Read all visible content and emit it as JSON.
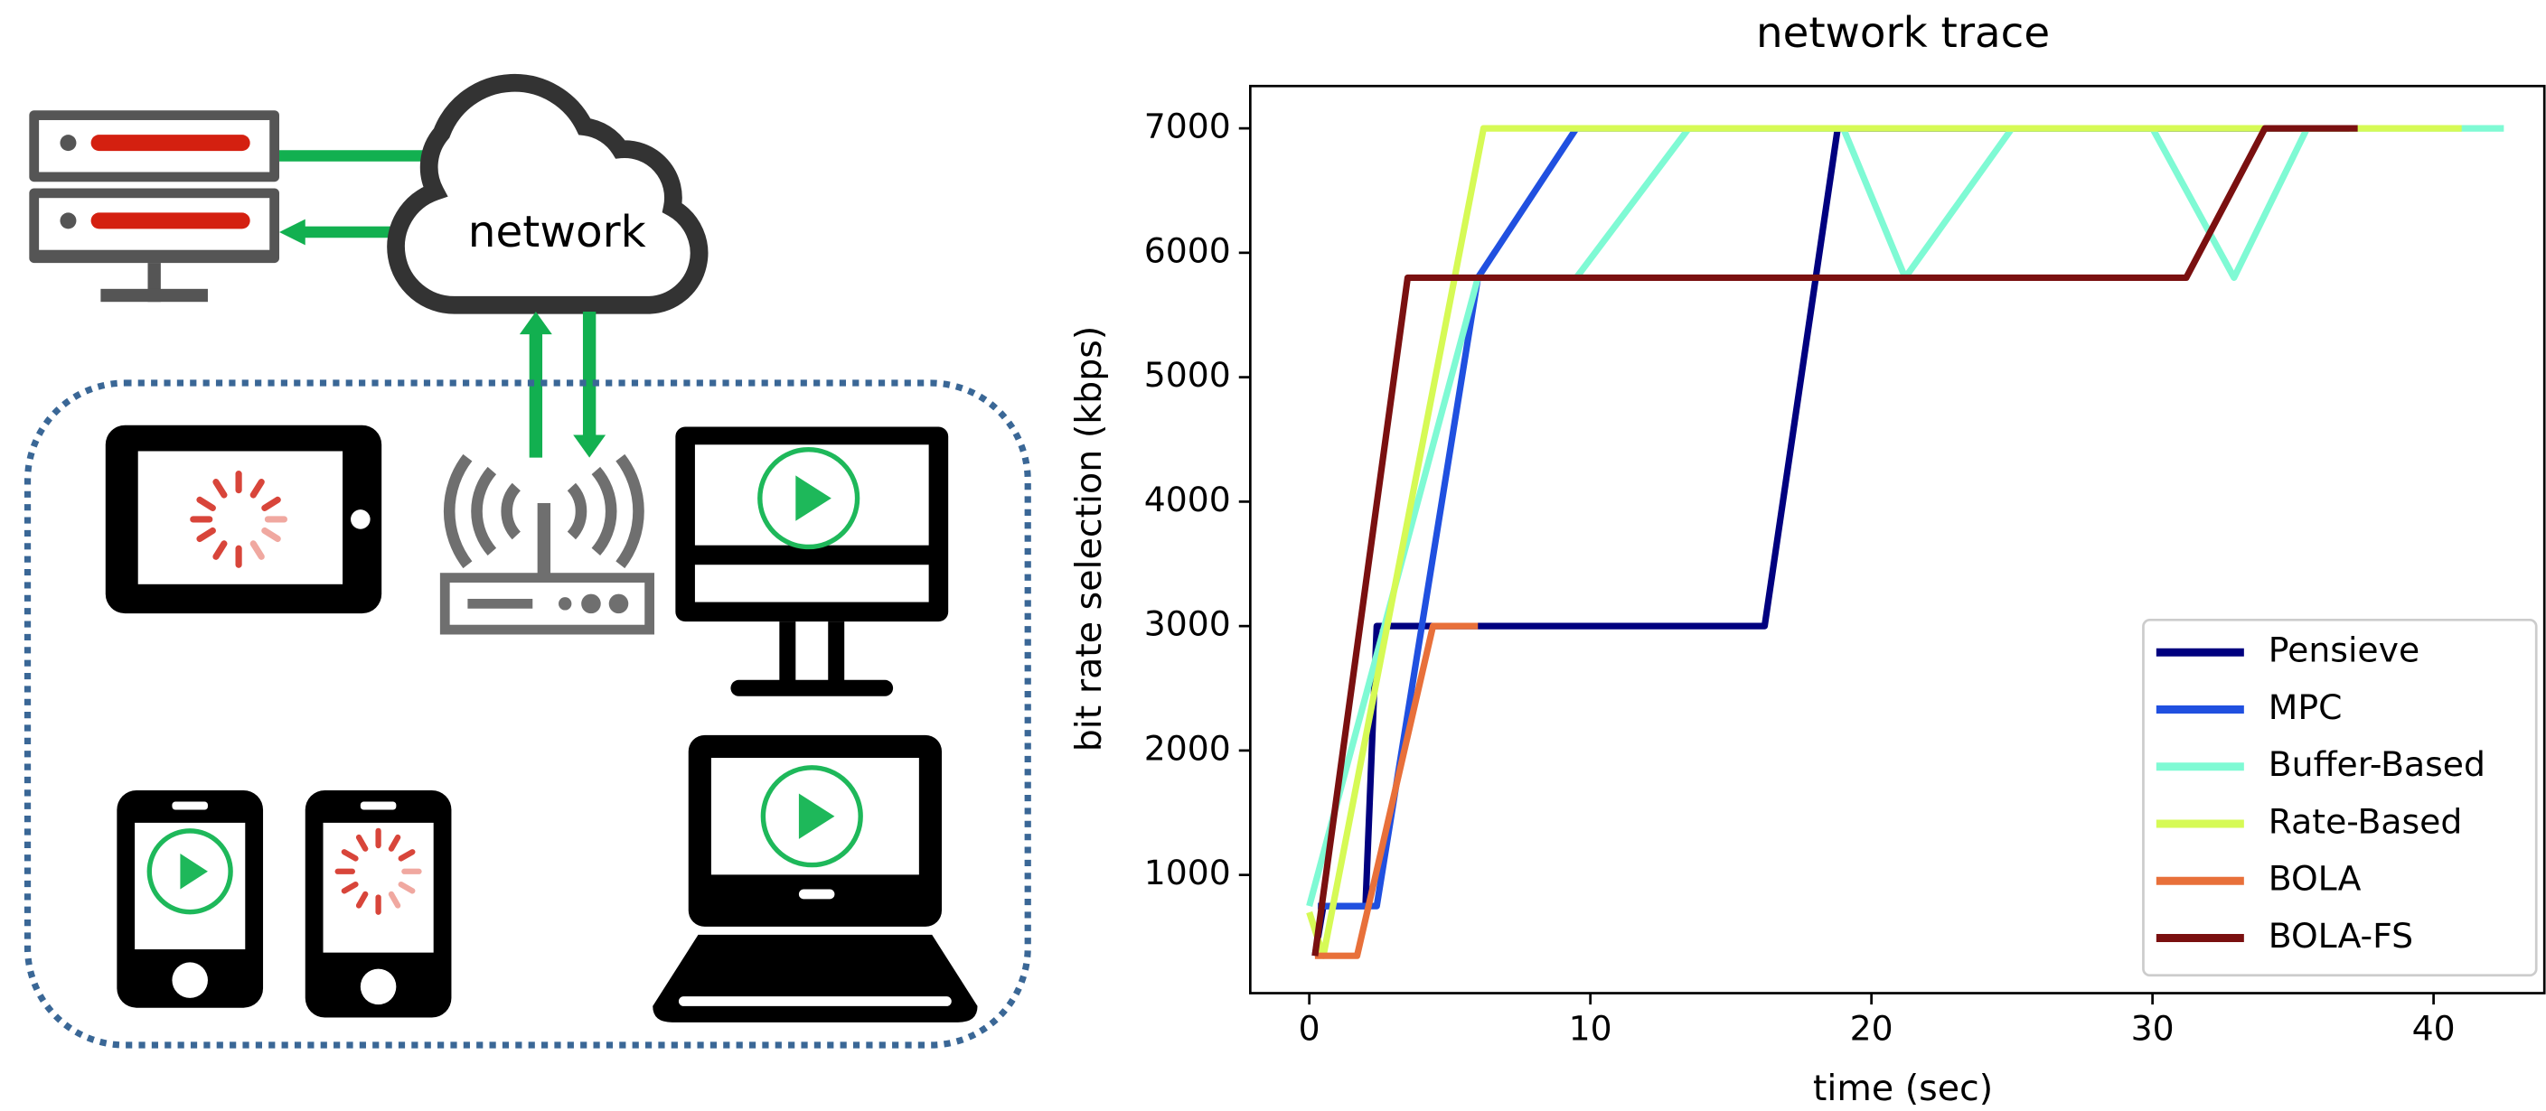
{
  "diagram": {
    "cloud_label": "network"
  },
  "chart_data": {
    "type": "line",
    "title": "network trace",
    "xlabel": "time (sec)",
    "ylabel": "bit rate selection (kbps)",
    "xlim": [
      -2.1,
      44
    ],
    "ylim": [
      50,
      7340
    ],
    "xticks": [
      0,
      10,
      20,
      30,
      40
    ],
    "yticks": [
      1000,
      2000,
      3000,
      4000,
      5000,
      6000,
      7000
    ],
    "legend": "lower right",
    "series": [
      {
        "name": "Pensieve",
        "color": "#00007f",
        "x": [
          0.2,
          0.5,
          2.0,
          2.4,
          16.2,
          18.8,
          37
        ],
        "values": [
          350,
          750,
          750,
          3000,
          3000,
          7000,
          7000
        ]
      },
      {
        "name": "MPC",
        "color": "#2050e0",
        "x": [
          0.3,
          2.4,
          6.0,
          9.5,
          35
        ],
        "values": [
          750,
          750,
          5800,
          7000,
          7000
        ]
      },
      {
        "name": "Buffer-Based",
        "color": "#7ffad4",
        "x": [
          0,
          6.0,
          9.5,
          13.5,
          19,
          21.2,
          25,
          30,
          32.9,
          35.5,
          42.5
        ],
        "values": [
          750,
          5800,
          5800,
          7000,
          7000,
          5800,
          7000,
          7000,
          5800,
          7000,
          7000
        ]
      },
      {
        "name": "Rate-Based",
        "color": "#d6fa55",
        "x": [
          0,
          0.5,
          6.2,
          41
        ],
        "values": [
          700,
          350,
          7000,
          7000
        ]
      },
      {
        "name": "BOLA",
        "color": "#e8703a",
        "x": [
          0.2,
          1.7,
          4.4,
          6.0
        ],
        "values": [
          350,
          350,
          3000,
          3000
        ]
      },
      {
        "name": "BOLA-FS",
        "color": "#7a1010",
        "x": [
          0.2,
          3.5,
          31.2,
          34,
          37.3
        ],
        "values": [
          350,
          5800,
          5800,
          7000,
          7000
        ]
      }
    ]
  }
}
